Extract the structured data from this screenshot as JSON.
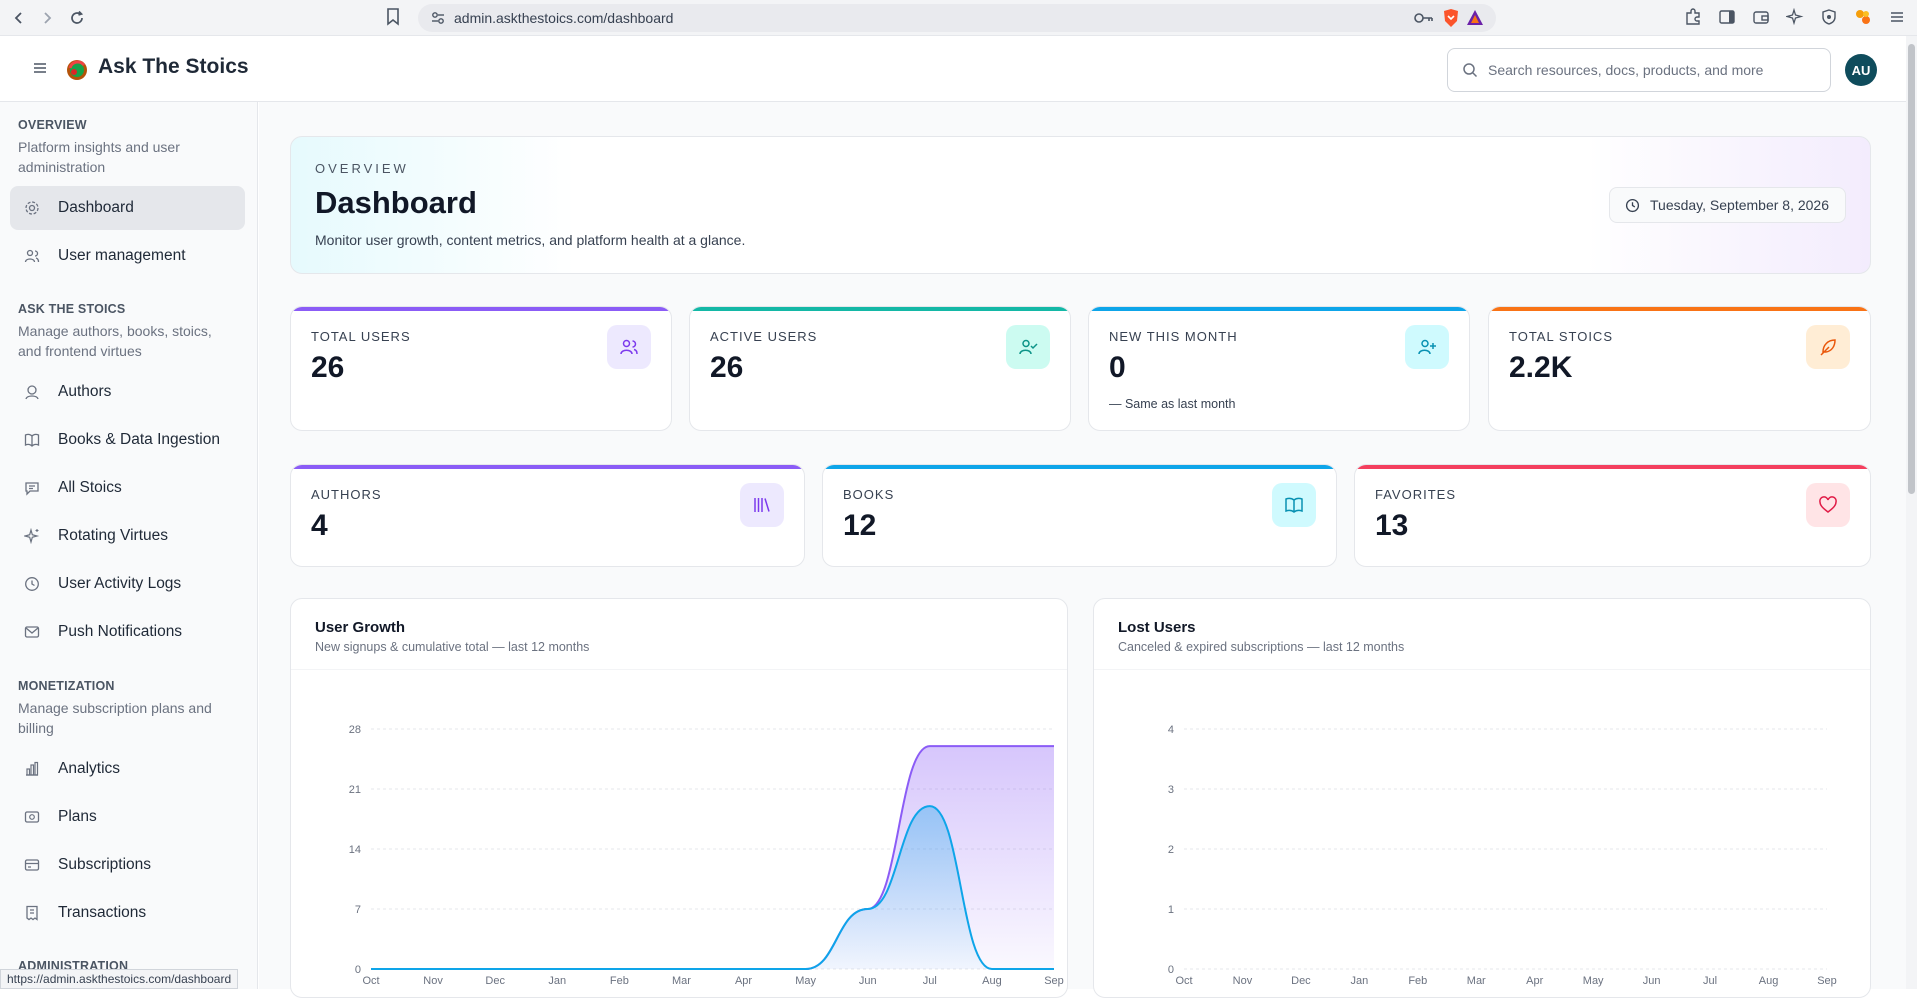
{
  "browser": {
    "url": "admin.askthestoics.com/dashboard",
    "status_url": "https://admin.askthestoics.com/dashboard"
  },
  "header": {
    "brand": "Ask The Stoics",
    "search_placeholder": "Search resources, docs, products, and more",
    "avatar_initials": "AU"
  },
  "sidebar": {
    "sections": [
      {
        "title": "OVERVIEW",
        "desc": "Platform insights and user administration"
      },
      {
        "title": "ASK THE STOICS",
        "desc": "Manage authors, books, stoics, and frontend virtues"
      },
      {
        "title": "MONETIZATION",
        "desc": "Manage subscription plans and billing"
      },
      {
        "title": "ADMINISTRATION",
        "desc": ""
      }
    ],
    "items": [
      {
        "label": "Dashboard",
        "icon": "gear-icon"
      },
      {
        "label": "User management",
        "icon": "users-icon"
      },
      {
        "label": "Authors",
        "icon": "authors-icon"
      },
      {
        "label": "Books & Data Ingestion",
        "icon": "book-icon"
      },
      {
        "label": "All Stoics",
        "icon": "chat-icon"
      },
      {
        "label": "Rotating Virtues",
        "icon": "sparkle-icon"
      },
      {
        "label": "User Activity Logs",
        "icon": "clock-icon"
      },
      {
        "label": "Push Notifications",
        "icon": "mail-icon"
      },
      {
        "label": "Analytics",
        "icon": "bar-chart-icon"
      },
      {
        "label": "Plans",
        "icon": "plans-icon"
      },
      {
        "label": "Subscriptions",
        "icon": "card-icon"
      },
      {
        "label": "Transactions",
        "icon": "receipt-icon"
      }
    ]
  },
  "hero": {
    "eyebrow": "OVERVIEW",
    "title": "Dashboard",
    "subtitle": "Monitor user growth, content metrics, and platform health at a glance.",
    "date": "Tuesday, September 8, 2026"
  },
  "stats": [
    {
      "label": "TOTAL USERS",
      "value": "26",
      "note": "",
      "accent": "#8b5cf6",
      "icon": "users-icon"
    },
    {
      "label": "ACTIVE USERS",
      "value": "26",
      "note": "",
      "accent": "#14b8a6",
      "icon": "user-check-icon"
    },
    {
      "label": "NEW THIS MONTH",
      "value": "0",
      "note": "— Same as last month",
      "accent": "#0ea5e9",
      "icon": "user-plus-icon"
    },
    {
      "label": "TOTAL STOICS",
      "value": "2.2K",
      "note": "",
      "accent": "#f97316",
      "icon": "feather-icon"
    },
    {
      "label": "AUTHORS",
      "value": "4",
      "note": "",
      "accent": "#8b5cf6",
      "icon": "library-icon"
    },
    {
      "label": "BOOKS",
      "value": "12",
      "note": "",
      "accent": "#0ea5e9",
      "icon": "open-book-icon"
    },
    {
      "label": "FAVORITES",
      "value": "13",
      "note": "",
      "accent": "#f43f5e",
      "icon": "heart-icon"
    }
  ],
  "chart_data": [
    {
      "type": "area",
      "title": "User Growth",
      "subtitle": "New signups & cumulative total — last 12 months",
      "categories": [
        "Oct",
        "Nov",
        "Dec",
        "Jan",
        "Feb",
        "Mar",
        "Apr",
        "May",
        "Jun",
        "Jul",
        "Aug",
        "Sep"
      ],
      "ylim": [
        0,
        28
      ],
      "yticks": [
        0,
        7,
        14,
        21,
        28
      ],
      "grid": true,
      "series": [
        {
          "values": [
            0,
            0,
            0,
            0,
            0,
            0,
            0,
            0,
            7,
            26,
            26,
            26
          ],
          "color": "#8b5cf6"
        },
        {
          "values": [
            0,
            0,
            0,
            0,
            0,
            0,
            0,
            0,
            7,
            19,
            0,
            0
          ],
          "color": "#0ea5e9"
        }
      ]
    },
    {
      "type": "line",
      "title": "Lost Users",
      "subtitle": "Canceled & expired subscriptions — last 12 months",
      "categories": [
        "Oct",
        "Nov",
        "Dec",
        "Jan",
        "Feb",
        "Mar",
        "Apr",
        "May",
        "Jun",
        "Jul",
        "Aug",
        "Sep"
      ],
      "ylim": [
        0,
        4
      ],
      "yticks": [
        0,
        1,
        2,
        3,
        4
      ],
      "grid": true,
      "series": []
    }
  ]
}
